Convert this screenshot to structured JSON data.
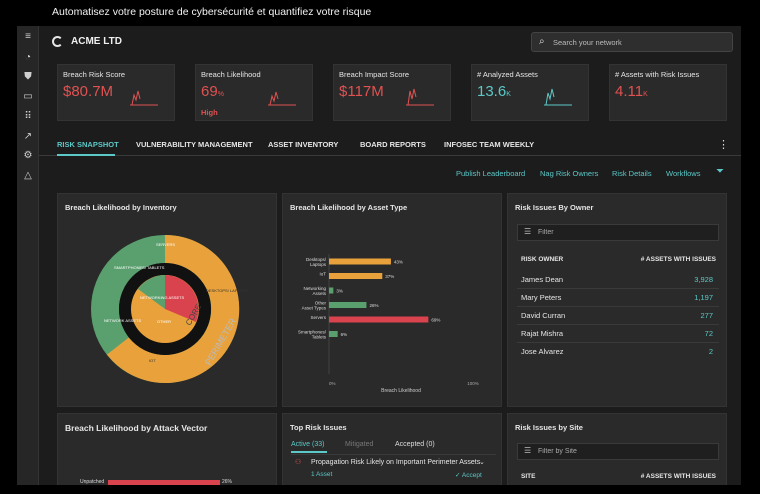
{
  "banner": "Automatisez votre posture de cybersécurité et quantifiez votre risque",
  "header": {
    "company": "ACME LTD",
    "search_placeholder": "Search your network"
  },
  "rail_icons": [
    "menu-icon",
    "logo-icon",
    "shield-icon",
    "devices-icon",
    "grid-icon",
    "trend-icon",
    "gear-icon",
    "warning-icon"
  ],
  "kpis": [
    {
      "label": "Breach Risk Score",
      "value": "$80.7M",
      "unit": "",
      "sub": "",
      "color": "#e05252"
    },
    {
      "label": "Breach Likelihood",
      "value": "69",
      "unit": "%",
      "sub": "High",
      "color": "#e05252"
    },
    {
      "label": "Breach Impact Score",
      "value": "$117M",
      "unit": "",
      "sub": "",
      "color": "#e05252"
    },
    {
      "label": "# Analyzed Assets",
      "value": "13.6",
      "unit": "K",
      "sub": "",
      "color": "#5cc8c8"
    },
    {
      "label": "# Assets with Risk Issues",
      "value": "4.11",
      "unit": "K",
      "sub": "",
      "color": "#e05252"
    }
  ],
  "tabs": [
    "RISK SNAPSHOT",
    "VULNERABILITY MANAGEMENT",
    "ASSET INVENTORY",
    "BOARD REPORTS",
    "INFOSEC TEAM WEEKLY"
  ],
  "actions": [
    "Publish Leaderboard",
    "Nag Risk Owners",
    "Risk Details",
    "Workflows"
  ],
  "inventory": {
    "title": "Breach Likelihood by Inventory",
    "inner_labels": [
      "NETWORKING ASSETS",
      "OTHER"
    ],
    "outer_labels": [
      "DESKTOPS/ LAPTOPS",
      "IOT",
      "SMARTPHONES/ TABLETS",
      "NETWORK ASSETS",
      "SERVERS"
    ],
    "ring_labels": [
      "CORE",
      "PERIMETER"
    ]
  },
  "asset_type": {
    "title": "Breach Likelihood by Asset Type",
    "chart_data": {
      "type": "bar",
      "orientation": "horizontal",
      "categories": [
        "Desktops/ Laptops",
        "IoT",
        "Networking Assets",
        "Other Asset Types",
        "Servers",
        "Smartphones/ Tablets"
      ],
      "values": [
        43,
        37,
        3,
        26,
        69,
        6
      ],
      "value_labels": [
        "43%",
        "37%",
        "3%",
        "26%",
        "69%",
        "6%"
      ],
      "colors": [
        "#e9a23b",
        "#e9a23b",
        "#5aa06e",
        "#5aa06e",
        "#d9434e",
        "#5aa06e"
      ],
      "xlabel": "Breach Likelihood",
      "xticks": [
        "0%",
        "100%"
      ],
      "xlim": [
        0,
        100
      ]
    }
  },
  "owner": {
    "title": "Risk Issues By Owner",
    "filter_placeholder": "Filter",
    "col_owner": "RISK OWNER",
    "col_assets": "# ASSETS WITH ISSUES",
    "rows": [
      {
        "name": "James Dean",
        "value": "3,928"
      },
      {
        "name": "Mary Peters",
        "value": "1,197"
      },
      {
        "name": "David Curran",
        "value": "277"
      },
      {
        "name": "Rajat Mishra",
        "value": "72"
      },
      {
        "name": "Jose Alvarez",
        "value": "2"
      }
    ]
  },
  "attack": {
    "title": "Breach Likelihood by Attack Vector",
    "chart_data": {
      "type": "bar",
      "orientation": "horizontal",
      "categories": [
        "Unpatched"
      ],
      "values": [
        26
      ],
      "value_labels": [
        "26%"
      ]
    }
  },
  "top_risk": {
    "title": "Top Risk Issues",
    "tabs": [
      "Active (33)",
      "Mitigated",
      "Accepted (0)"
    ],
    "item_title": "Propagation Risk Likely on Important Perimeter Assets",
    "item_assets": "1 Asset",
    "item_action": "Accept"
  },
  "site": {
    "title": "Risk Issues by Site",
    "filter_placeholder": "Filter by Site",
    "col_site": "SITE",
    "col_assets": "# ASSETS WITH ISSUES"
  }
}
